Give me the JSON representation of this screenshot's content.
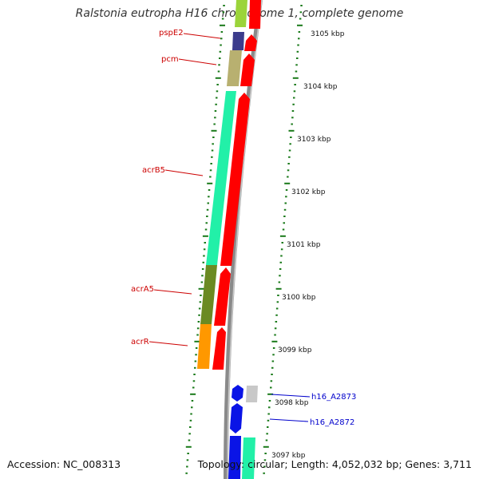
{
  "title": "Ralstonia eutropha H16 chromosome 1, complete genome",
  "footer": {
    "accession": "Accession: NC_008313",
    "info": "Topology: circular; Length: 4,052,032 bp; Genes: 3,711"
  },
  "scale_labels": [
    "3105 kbp",
    "3104 kbp",
    "3103 kbp",
    "3102 kbp",
    "3101 kbp",
    "3100 kbp",
    "3099 kbp",
    "3098 kbp",
    "3097 kbp"
  ],
  "gene_labels": {
    "left": [
      "pspE2",
      "pcm",
      "acrB5",
      "acrA5",
      "acrR"
    ],
    "right": [
      "h16_A2873",
      "h16_A2872"
    ]
  },
  "colors": {
    "left_label": "#cc0000",
    "right_label": "#0000cc",
    "tick": "#1a7a1a",
    "backbone": "#8a8a8a",
    "cds": "#ff0000"
  }
}
